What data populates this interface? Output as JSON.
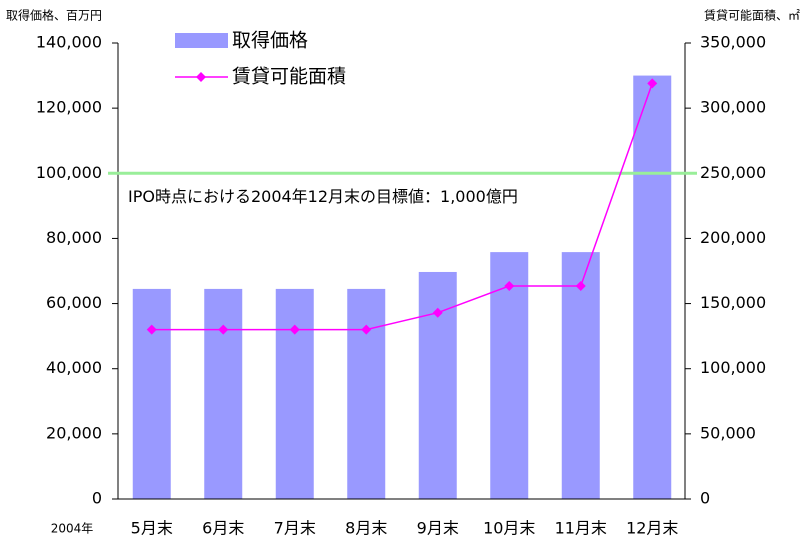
{
  "chart_data": {
    "type": "bar_line",
    "ylabel": "取得価格、百万円",
    "y2label": "賃貸可能面積、㎡",
    "xlabel": "2004年",
    "categories": [
      "5月末",
      "6月末",
      "7月末",
      "8月末",
      "9月末",
      "10月末",
      "11月末",
      "12月末"
    ],
    "series": [
      {
        "name": "取得価格",
        "type": "bar",
        "color": "#9999ff",
        "values": [
          64500,
          64500,
          64500,
          64500,
          69700,
          75800,
          75800,
          130000
        ]
      },
      {
        "name": "賃貸可能面積",
        "type": "line",
        "axis": "y2",
        "color": "#ff00ff",
        "values": [
          130000,
          130000,
          130000,
          130000,
          143000,
          163500,
          163500,
          319000
        ]
      }
    ],
    "reference_line": {
      "value": 100000,
      "label": "IPO時点における2004年12月末の目標値：1,000億円",
      "color": "#99ee99"
    },
    "ylim": [
      0,
      140000
    ],
    "yticks": [
      0,
      {
        "value": 20000,
        "label": "20,000"
      },
      {
        "value": 40000,
        "label": "40,000"
      },
      {
        "value": 60000,
        "label": "60,000"
      },
      {
        "value": 80000,
        "label": "80,000"
      },
      {
        "value": 100000,
        "label": "100,000"
      },
      {
        "value": 120000,
        "label": "120,000"
      },
      {
        "value": 140000,
        "label": "140,000"
      }
    ],
    "y2lim": [
      0,
      350000
    ],
    "y2ticks": [
      0,
      {
        "value": 50000,
        "label": "50,000"
      },
      {
        "value": 100000,
        "label": "100,000"
      },
      {
        "value": 150000,
        "label": "150,000"
      },
      {
        "value": 200000,
        "label": "200,000"
      },
      {
        "value": 250000,
        "label": "250,000"
      },
      {
        "value": 300000,
        "label": "300,000"
      },
      {
        "value": 350000,
        "label": "350,000"
      }
    ]
  }
}
